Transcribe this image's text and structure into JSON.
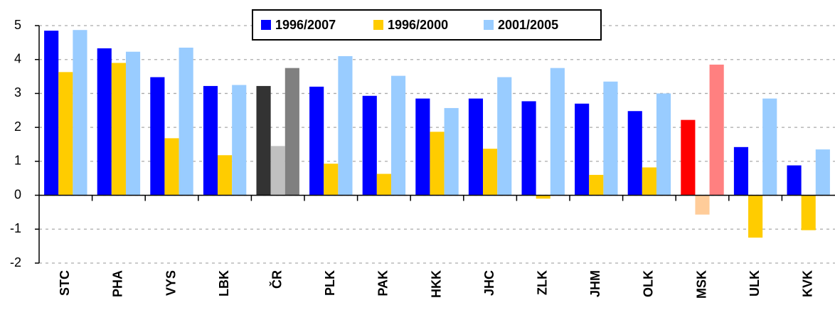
{
  "chart_data": {
    "type": "bar",
    "categories": [
      "STC",
      "PHA",
      "VYS",
      "LBK",
      "ČR",
      "PLK",
      "PAK",
      "HKK",
      "JHC",
      "ZLK",
      "JHM",
      "OLK",
      "MSK",
      "ULK",
      "KVK"
    ],
    "series": [
      {
        "name": "1996/2007",
        "color": "#0000ff",
        "colors": [
          "#0000ff",
          "#0000ff",
          "#0000ff",
          "#0000ff",
          "#333333",
          "#0000ff",
          "#0000ff",
          "#0000ff",
          "#0000ff",
          "#0000ff",
          "#0000ff",
          "#0000ff",
          "#ff0000",
          "#0000ff",
          "#0000ff"
        ],
        "values": [
          4.85,
          4.33,
          3.48,
          3.22,
          3.22,
          3.2,
          2.93,
          2.85,
          2.85,
          2.77,
          2.7,
          2.48,
          2.22,
          1.42,
          0.88
        ]
      },
      {
        "name": "1996/2000",
        "color": "#ffcc00",
        "colors": [
          "#ffcc00",
          "#ffcc00",
          "#ffcc00",
          "#ffcc00",
          "#c0c0c0",
          "#ffcc00",
          "#ffcc00",
          "#ffcc00",
          "#ffcc00",
          "#ffcc00",
          "#ffcc00",
          "#ffcc00",
          "#ffcc99",
          "#ffcc00",
          "#ffcc00"
        ],
        "values": [
          3.63,
          3.9,
          1.68,
          1.18,
          1.45,
          0.93,
          0.63,
          1.87,
          1.37,
          -0.1,
          0.6,
          0.82,
          -0.57,
          -1.25,
          -1.03
        ]
      },
      {
        "name": "2001/2005",
        "color": "#99ccff",
        "colors": [
          "#99ccff",
          "#99ccff",
          "#99ccff",
          "#99ccff",
          "#808080",
          "#99ccff",
          "#99ccff",
          "#99ccff",
          "#99ccff",
          "#99ccff",
          "#99ccff",
          "#99ccff",
          "#ff8080",
          "#99ccff",
          "#99ccff"
        ],
        "values": [
          4.87,
          4.23,
          4.35,
          3.25,
          3.75,
          4.1,
          3.52,
          2.57,
          3.48,
          3.75,
          3.35,
          3.0,
          3.85,
          2.85,
          1.35
        ]
      }
    ],
    "ylim": [
      -2,
      5
    ],
    "yticks": [
      -2,
      -1,
      0,
      1,
      2,
      3,
      4,
      5
    ],
    "grid": true,
    "legend": "top"
  }
}
